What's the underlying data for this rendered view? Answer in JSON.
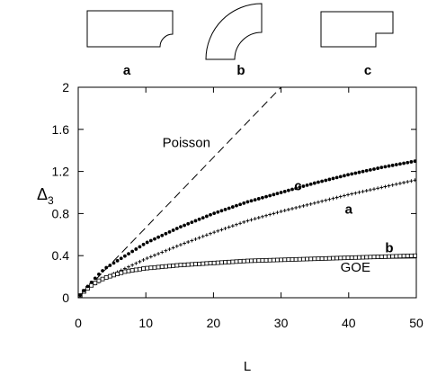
{
  "figure": {
    "insets": [
      {
        "label": "a",
        "shape": "rectangle with quarter-circle notch at lower-right corner"
      },
      {
        "label": "b",
        "shape": "quarter annulus"
      },
      {
        "label": "c",
        "shape": "rectangle with rectangular notch at lower-right corner"
      }
    ]
  },
  "chart_data": {
    "type": "line",
    "title": "",
    "xlabel": "L",
    "ylabel": "Δ3",
    "xlim": [
      0,
      50
    ],
    "ylim": [
      0,
      2
    ],
    "xticks": [
      "0",
      "10",
      "20",
      "30",
      "40",
      "50"
    ],
    "yticks": [
      "0",
      "0.4",
      "0.8",
      "1.2",
      "1.6",
      "2"
    ],
    "grid": false,
    "series": [
      {
        "name": "Poisson",
        "style": "dashed",
        "color": "#000000",
        "x": [
          0,
          30
        ],
        "y": [
          0,
          2.0
        ]
      },
      {
        "name": "GOE",
        "style": "solid",
        "color": "#000000",
        "x": [
          0,
          1,
          2,
          3,
          4,
          5,
          7,
          10,
          15,
          20,
          25,
          30,
          35,
          40,
          45,
          50
        ],
        "y": [
          0,
          0.07,
          0.12,
          0.16,
          0.19,
          0.21,
          0.24,
          0.27,
          0.3,
          0.32,
          0.34,
          0.35,
          0.36,
          0.37,
          0.375,
          0.38
        ]
      },
      {
        "name": "a",
        "style": "plus-markers",
        "color": "#000000",
        "x": [
          0,
          1,
          2,
          3,
          4,
          5,
          7,
          10,
          15,
          20,
          25,
          30,
          35,
          40,
          45,
          50
        ],
        "y": [
          0,
          0.07,
          0.12,
          0.15,
          0.19,
          0.22,
          0.28,
          0.37,
          0.5,
          0.62,
          0.73,
          0.82,
          0.9,
          0.98,
          1.05,
          1.12
        ]
      },
      {
        "name": "b",
        "style": "square-markers",
        "color": "#000000",
        "x": [
          0,
          1,
          2,
          3,
          4,
          5,
          7,
          10,
          15,
          20,
          25,
          30,
          35,
          40,
          45,
          50
        ],
        "y": [
          0,
          0.07,
          0.12,
          0.16,
          0.19,
          0.21,
          0.25,
          0.28,
          0.31,
          0.33,
          0.35,
          0.36,
          0.37,
          0.38,
          0.39,
          0.4
        ]
      },
      {
        "name": "c",
        "style": "dot-markers",
        "color": "#000000",
        "x": [
          0,
          1,
          2,
          3,
          4,
          5,
          7,
          10,
          15,
          20,
          25,
          30,
          35,
          40,
          45,
          50
        ],
        "y": [
          0,
          0.08,
          0.15,
          0.22,
          0.28,
          0.32,
          0.4,
          0.52,
          0.67,
          0.8,
          0.91,
          1.0,
          1.09,
          1.17,
          1.24,
          1.3
        ]
      }
    ],
    "annotations": [
      {
        "text": "Poisson",
        "x": 16,
        "y": 1.43
      },
      {
        "text": "c",
        "x": 32.5,
        "y": 1.02
      },
      {
        "text": "a",
        "x": 40,
        "y": 0.8
      },
      {
        "text": "b",
        "x": 46,
        "y": 0.43
      },
      {
        "text": "GOE",
        "x": 41,
        "y": 0.25
      }
    ]
  }
}
